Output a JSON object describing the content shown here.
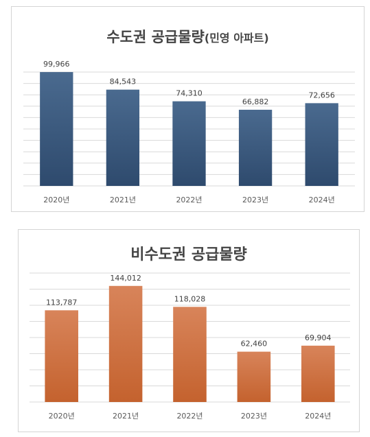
{
  "chart_data": [
    {
      "type": "bar",
      "title": "수도권 공급물량",
      "subtitle": "(민영 아파트)",
      "categories": [
        "2020년",
        "2021년",
        "2022년",
        "2023년",
        "2024년"
      ],
      "values": [
        99966,
        84543,
        74310,
        66882,
        72656
      ],
      "value_labels": [
        "99,966",
        "84,543",
        "74,310",
        "66,882",
        "72,656"
      ],
      "ylim": [
        0,
        100000
      ],
      "grid": true,
      "bar_color_top": "#4a6a8f",
      "bar_color_bottom": "#2e4a6d"
    },
    {
      "type": "bar",
      "title": "비수도권 공급물량",
      "categories": [
        "2020년",
        "2021년",
        "2022년",
        "2023년",
        "2024년"
      ],
      "values": [
        113787,
        144012,
        118028,
        62460,
        69904
      ],
      "value_labels": [
        "113,787",
        "144,012",
        "118,028",
        "62,460",
        "69,904"
      ],
      "ylim": [
        0,
        160000
      ],
      "grid": true,
      "bar_color_top": "#d8845a",
      "bar_color_bottom": "#c4622e"
    }
  ]
}
